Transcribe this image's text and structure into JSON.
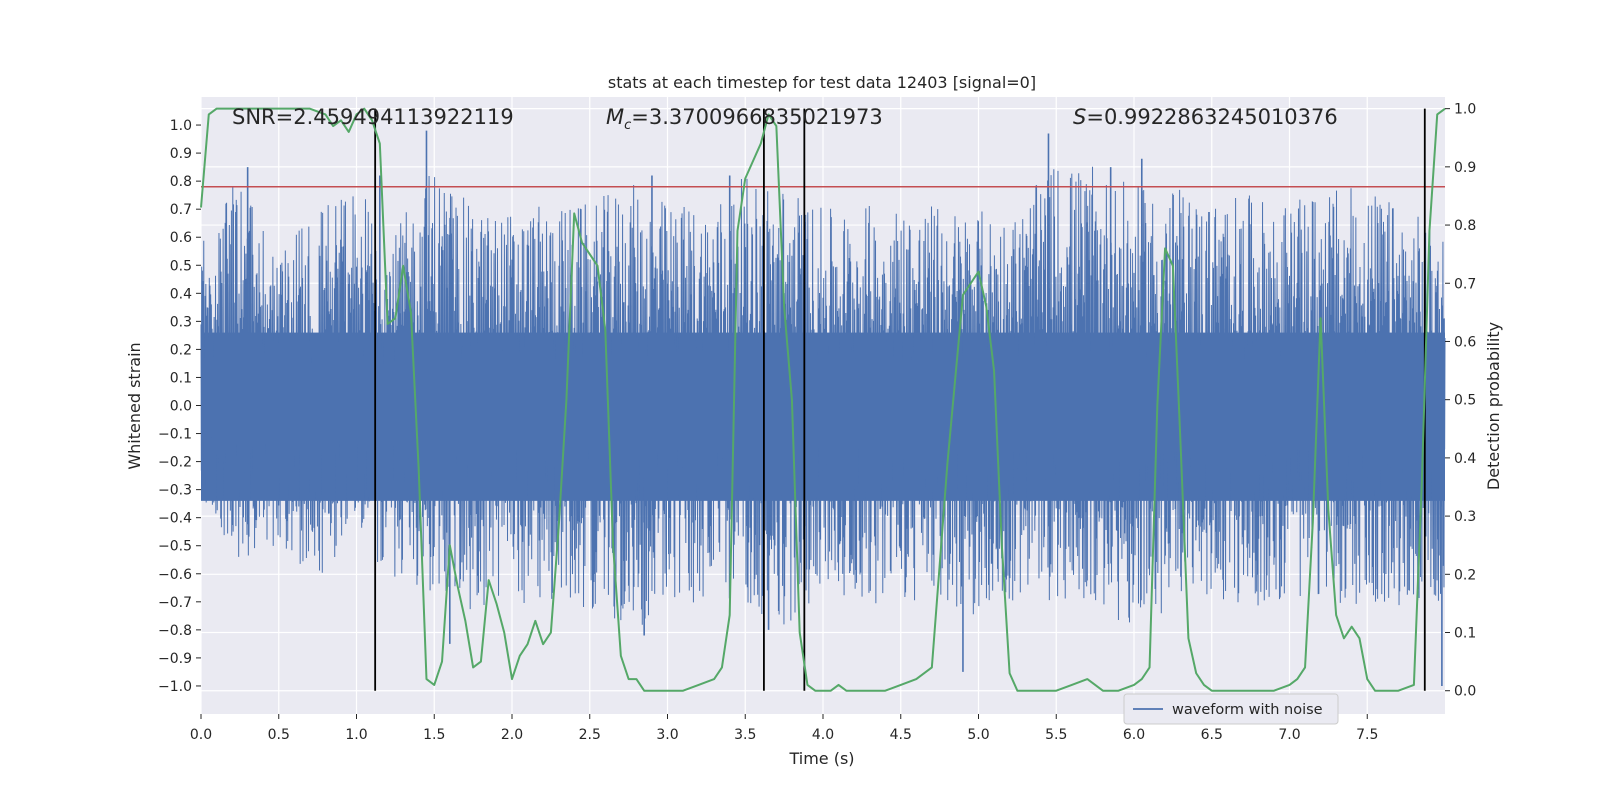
{
  "chart_data": {
    "type": "line",
    "title": "stats at each timestep for test data 12403 [signal=0]",
    "xlabel": "Time (s)",
    "ylabel": "Whitened strain",
    "ylabel_right": "Detection probability",
    "xlim": [
      0.0,
      8.0
    ],
    "ylim": [
      -1.1,
      1.1
    ],
    "ylim_right": [
      -0.04,
      1.02
    ],
    "x_ticks": [
      "0.0",
      "0.5",
      "1.0",
      "1.5",
      "2.0",
      "2.5",
      "3.0",
      "3.5",
      "4.0",
      "4.5",
      "5.0",
      "5.5",
      "6.0",
      "6.5",
      "7.0",
      "7.5"
    ],
    "y_ticks": [
      "1.0",
      "0.9",
      "0.8",
      "0.7",
      "0.6",
      "0.5",
      "0.4",
      "0.3",
      "0.2",
      "0.1",
      "0.0",
      "−0.1",
      "−0.2",
      "−0.3",
      "−0.4",
      "−0.5",
      "−0.6",
      "−0.7",
      "−0.8",
      "−0.9",
      "−1.0"
    ],
    "y_ticks_right": [
      "1.0",
      "0.9",
      "0.8",
      "0.7",
      "0.6",
      "0.5",
      "0.4",
      "0.3",
      "0.2",
      "0.1",
      "0.0"
    ],
    "annotations": {
      "snr": "SNR=2.459494113922119",
      "mc_symbol": "M",
      "mc_sub": "c",
      "mc_value": "=3.3700966835021973",
      "s_symbol": "S",
      "s_value": "=0.9922863245010376"
    },
    "threshold": {
      "value": 0.78,
      "color": "#c44e52"
    },
    "vlines": [
      1.12,
      3.62,
      3.88,
      7.87
    ],
    "legend": {
      "label": "waveform with noise",
      "position": "lower-right"
    },
    "series": [
      {
        "name": "waveform with noise",
        "axis": "left",
        "color": "#4c72b0",
        "envelope": [
          [
            0.0,
            0.6,
            -0.45
          ],
          [
            0.25,
            0.82,
            -0.55
          ],
          [
            0.5,
            0.55,
            -0.5
          ],
          [
            0.75,
            0.7,
            -0.62
          ],
          [
            1.0,
            0.8,
            -0.5
          ],
          [
            1.25,
            0.62,
            -0.63
          ],
          [
            1.5,
            0.88,
            -0.68
          ],
          [
            1.75,
            0.7,
            -0.75
          ],
          [
            2.0,
            0.7,
            -0.7
          ],
          [
            2.25,
            0.72,
            -0.72
          ],
          [
            2.5,
            0.72,
            -0.72
          ],
          [
            2.75,
            0.8,
            -0.82
          ],
          [
            3.0,
            0.73,
            -0.72
          ],
          [
            3.25,
            0.73,
            -0.72
          ],
          [
            3.5,
            0.82,
            -0.7
          ],
          [
            3.75,
            0.8,
            -0.82
          ],
          [
            4.0,
            0.7,
            -0.65
          ],
          [
            4.25,
            0.72,
            -0.7
          ],
          [
            4.5,
            0.73,
            -0.72
          ],
          [
            4.75,
            0.72,
            -0.72
          ],
          [
            5.0,
            0.7,
            -0.75
          ],
          [
            5.25,
            0.7,
            -0.72
          ],
          [
            5.5,
            0.88,
            -0.7
          ],
          [
            5.75,
            0.85,
            -0.72
          ],
          [
            6.0,
            0.78,
            -0.82
          ],
          [
            6.25,
            0.78,
            -0.72
          ],
          [
            6.5,
            0.75,
            -0.7
          ],
          [
            6.75,
            0.75,
            -0.72
          ],
          [
            7.0,
            0.72,
            -0.7
          ],
          [
            7.25,
            0.78,
            -0.68
          ],
          [
            7.5,
            0.78,
            -0.78
          ],
          [
            7.75,
            0.7,
            -0.72
          ],
          [
            8.0,
            0.65,
            -0.7
          ]
        ],
        "spikes": [
          [
            0.3,
            0.85
          ],
          [
            1.45,
            0.98
          ],
          [
            1.15,
            0.82
          ],
          [
            2.9,
            0.82
          ],
          [
            3.4,
            0.82
          ],
          [
            5.45,
            0.97
          ],
          [
            5.85,
            0.85
          ],
          [
            6.05,
            0.88
          ],
          [
            1.6,
            -0.85
          ],
          [
            2.85,
            -0.82
          ],
          [
            3.65,
            -0.8
          ],
          [
            4.9,
            -0.95
          ],
          [
            7.98,
            -1.0
          ]
        ]
      },
      {
        "name": "detection probability",
        "axis": "right",
        "color": "#55a868",
        "x": [
          0.0,
          0.05,
          0.1,
          0.2,
          0.3,
          0.5,
          0.7,
          0.8,
          0.85,
          0.9,
          0.95,
          1.0,
          1.05,
          1.1,
          1.15,
          1.2,
          1.25,
          1.3,
          1.35,
          1.4,
          1.45,
          1.5,
          1.55,
          1.6,
          1.65,
          1.7,
          1.75,
          1.8,
          1.85,
          1.9,
          1.95,
          2.0,
          2.05,
          2.1,
          2.15,
          2.2,
          2.25,
          2.3,
          2.35,
          2.4,
          2.45,
          2.5,
          2.55,
          2.6,
          2.65,
          2.7,
          2.75,
          2.8,
          2.85,
          2.9,
          3.0,
          3.1,
          3.2,
          3.3,
          3.35,
          3.4,
          3.45,
          3.5,
          3.55,
          3.6,
          3.65,
          3.7,
          3.75,
          3.8,
          3.85,
          3.9,
          3.95,
          4.0,
          4.05,
          4.1,
          4.15,
          4.2,
          4.3,
          4.4,
          4.5,
          4.6,
          4.7,
          4.8,
          4.9,
          5.0,
          5.05,
          5.1,
          5.15,
          5.2,
          5.25,
          5.3,
          5.35,
          5.4,
          5.45,
          5.5,
          5.6,
          5.7,
          5.8,
          5.9,
          6.0,
          6.05,
          6.1,
          6.15,
          6.2,
          6.25,
          6.3,
          6.35,
          6.4,
          6.45,
          6.5,
          6.6,
          6.7,
          6.8,
          6.9,
          7.0,
          7.05,
          7.1,
          7.15,
          7.2,
          7.25,
          7.3,
          7.35,
          7.4,
          7.45,
          7.5,
          7.55,
          7.6,
          7.7,
          7.8,
          7.85,
          7.9,
          7.95,
          8.0
        ],
        "y": [
          0.83,
          0.99,
          1.0,
          1.0,
          1.0,
          1.0,
          1.0,
          0.99,
          0.97,
          0.98,
          0.96,
          0.99,
          1.0,
          0.98,
          0.94,
          0.63,
          0.64,
          0.73,
          0.65,
          0.38,
          0.02,
          0.01,
          0.05,
          0.25,
          0.18,
          0.12,
          0.04,
          0.05,
          0.19,
          0.15,
          0.1,
          0.02,
          0.06,
          0.08,
          0.12,
          0.08,
          0.1,
          0.28,
          0.5,
          0.82,
          0.77,
          0.75,
          0.73,
          0.62,
          0.25,
          0.06,
          0.02,
          0.02,
          0.0,
          0.0,
          0.0,
          0.0,
          0.01,
          0.02,
          0.04,
          0.13,
          0.79,
          0.88,
          0.91,
          0.94,
          0.99,
          0.97,
          0.66,
          0.5,
          0.1,
          0.01,
          0.0,
          0.0,
          0.0,
          0.01,
          0.0,
          0.0,
          0.0,
          0.0,
          0.01,
          0.02,
          0.04,
          0.39,
          0.68,
          0.72,
          0.66,
          0.55,
          0.25,
          0.03,
          0.0,
          0.0,
          0.0,
          0.0,
          0.0,
          0.0,
          0.01,
          0.02,
          0.0,
          0.0,
          0.01,
          0.02,
          0.04,
          0.49,
          0.76,
          0.73,
          0.42,
          0.09,
          0.03,
          0.01,
          0.0,
          0.0,
          0.0,
          0.0,
          0.0,
          0.01,
          0.02,
          0.04,
          0.29,
          0.64,
          0.31,
          0.13,
          0.09,
          0.11,
          0.09,
          0.02,
          0.0,
          0.0,
          0.0,
          0.01,
          0.35,
          0.79,
          0.99,
          1.0
        ]
      }
    ]
  }
}
